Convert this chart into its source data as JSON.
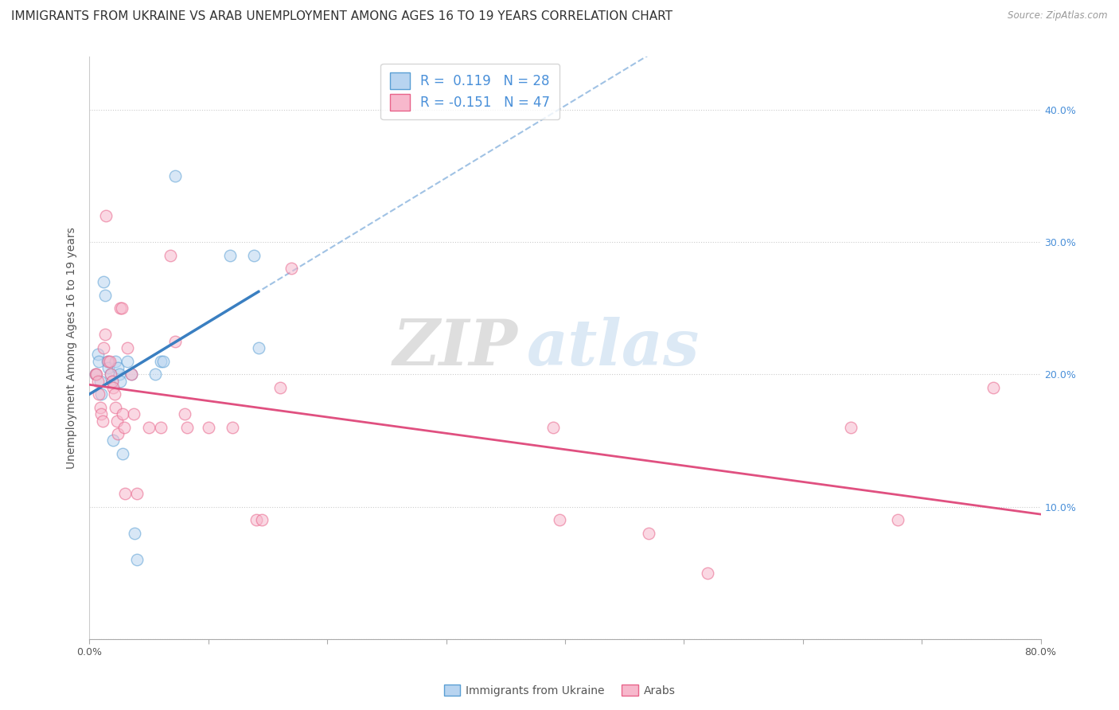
{
  "title": "IMMIGRANTS FROM UKRAINE VS ARAB UNEMPLOYMENT AMONG AGES 16 TO 19 YEARS CORRELATION CHART",
  "source": "Source: ZipAtlas.com",
  "ylabel": "Unemployment Among Ages 16 to 19 years",
  "xlim": [
    0.0,
    0.8
  ],
  "ylim": [
    0.0,
    0.44
  ],
  "ukraine_fill_color": "#b8d4f0",
  "arab_fill_color": "#f7b8cc",
  "ukraine_edge_color": "#5a9fd4",
  "arab_edge_color": "#e8648a",
  "ukraine_line_color": "#3a7fc1",
  "arab_line_color": "#e05080",
  "ukraine_dash_color": "#90b8e0",
  "r_ukraine": 0.119,
  "n_ukraine": 28,
  "r_arab": -0.151,
  "n_arab": 47,
  "legend_label_ukraine": "Immigrants from Ukraine",
  "legend_label_arab": "Arabs",
  "ukraine_x": [
    0.005,
    0.007,
    0.008,
    0.009,
    0.01,
    0.012,
    0.013,
    0.015,
    0.016,
    0.018,
    0.019,
    0.02,
    0.022,
    0.024,
    0.025,
    0.026,
    0.028,
    0.032,
    0.035,
    0.038,
    0.04,
    0.055,
    0.06,
    0.062,
    0.072,
    0.118,
    0.138,
    0.142
  ],
  "ukraine_y": [
    0.2,
    0.215,
    0.21,
    0.195,
    0.185,
    0.27,
    0.26,
    0.21,
    0.205,
    0.2,
    0.195,
    0.15,
    0.21,
    0.205,
    0.2,
    0.195,
    0.14,
    0.21,
    0.2,
    0.08,
    0.06,
    0.2,
    0.21,
    0.21,
    0.35,
    0.29,
    0.29,
    0.22
  ],
  "arab_x": [
    0.005,
    0.006,
    0.007,
    0.008,
    0.009,
    0.01,
    0.011,
    0.012,
    0.013,
    0.014,
    0.016,
    0.017,
    0.018,
    0.019,
    0.02,
    0.021,
    0.022,
    0.023,
    0.024,
    0.026,
    0.027,
    0.028,
    0.029,
    0.03,
    0.032,
    0.035,
    0.037,
    0.04,
    0.05,
    0.06,
    0.068,
    0.072,
    0.08,
    0.082,
    0.1,
    0.12,
    0.14,
    0.145,
    0.16,
    0.17,
    0.39,
    0.395,
    0.47,
    0.52,
    0.64,
    0.68,
    0.76
  ],
  "arab_y": [
    0.2,
    0.2,
    0.195,
    0.185,
    0.175,
    0.17,
    0.165,
    0.22,
    0.23,
    0.32,
    0.21,
    0.21,
    0.2,
    0.195,
    0.19,
    0.185,
    0.175,
    0.165,
    0.155,
    0.25,
    0.25,
    0.17,
    0.16,
    0.11,
    0.22,
    0.2,
    0.17,
    0.11,
    0.16,
    0.16,
    0.29,
    0.225,
    0.17,
    0.16,
    0.16,
    0.16,
    0.09,
    0.09,
    0.19,
    0.28,
    0.16,
    0.09,
    0.08,
    0.05,
    0.16,
    0.09,
    0.19
  ],
  "watermark_zip": "ZIP",
  "watermark_atlas": "atlas",
  "title_fontsize": 11,
  "axis_label_fontsize": 10,
  "tick_fontsize": 9,
  "legend_fontsize": 12,
  "marker_size": 110,
  "marker_alpha": 0.55,
  "grid_color": "#cccccc",
  "background_color": "#ffffff"
}
